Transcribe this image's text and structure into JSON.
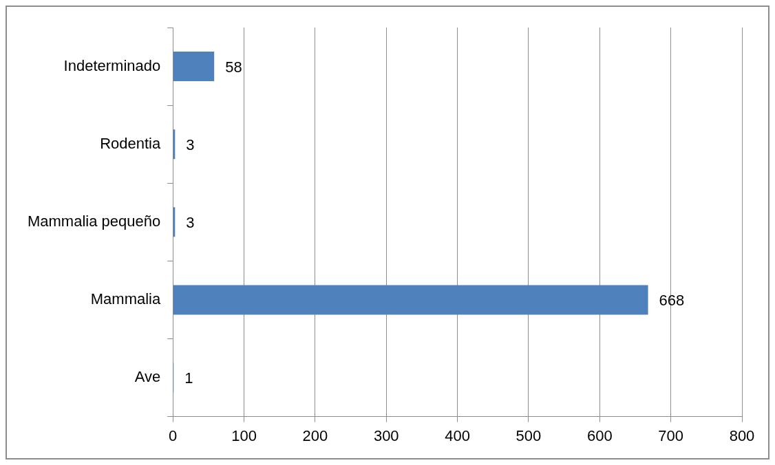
{
  "chart_data": {
    "type": "bar",
    "orientation": "horizontal",
    "categories": [
      "Indeterminado",
      "Rodentia",
      "Mammalia pequeño",
      "Mammalia",
      "Ave"
    ],
    "values": [
      58,
      3,
      3,
      668,
      1
    ],
    "color": "#4f81bd",
    "xlim": [
      0,
      800
    ],
    "xticks": [
      0,
      100,
      200,
      300,
      400,
      500,
      600,
      700,
      800
    ],
    "grid": "x",
    "data_labels": true,
    "legend": false
  }
}
